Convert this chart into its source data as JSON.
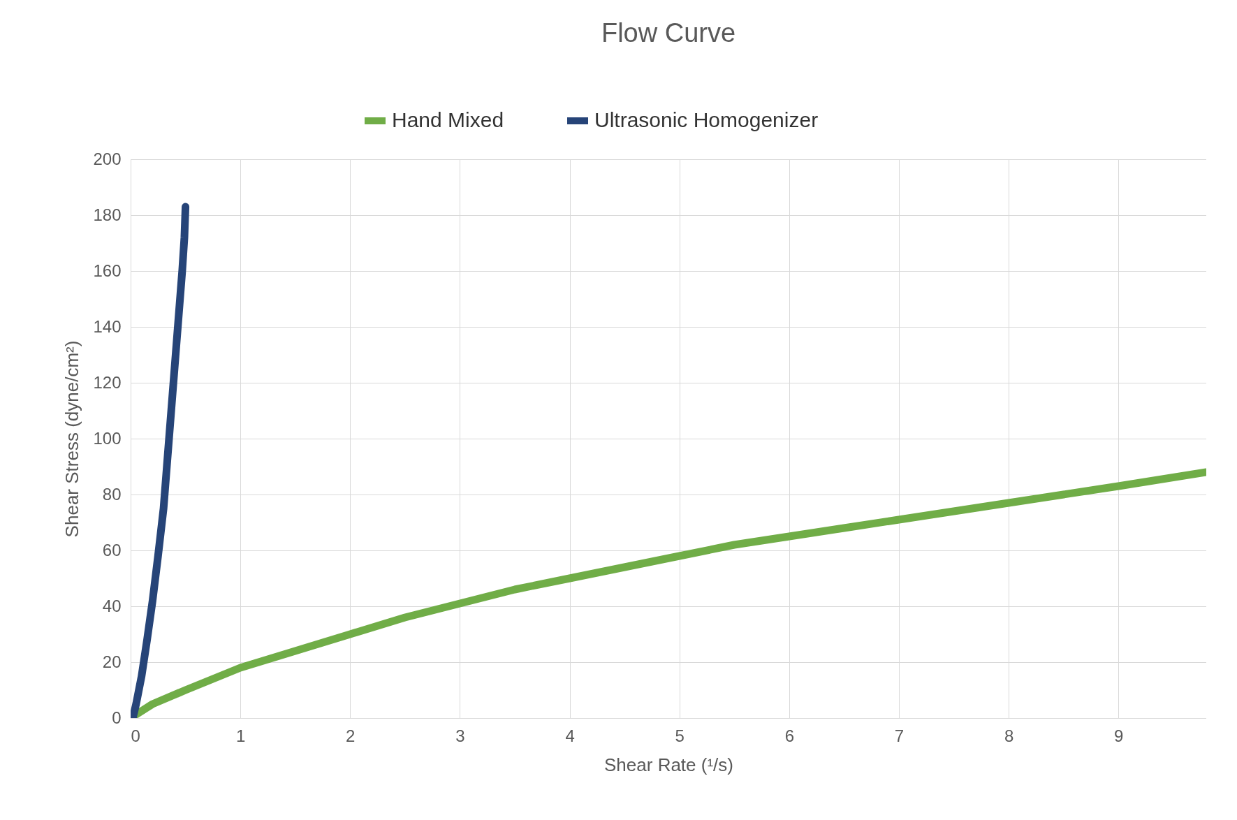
{
  "chart_data": {
    "type": "line",
    "title": "Flow Curve",
    "xlabel": "Shear Rate (¹/s)",
    "ylabel": "Shear Stress (dyne/cm²)",
    "series": [
      {
        "name": "Hand Mixed",
        "color": "#70ad47",
        "x": [
          0,
          0.2,
          0.5,
          1,
          1.5,
          2,
          2.5,
          3,
          3.5,
          4,
          4.5,
          5,
          5.5,
          6,
          6.5,
          7,
          7.5,
          8,
          8.5,
          9,
          9.8
        ],
        "values": [
          0,
          5,
          10,
          18,
          24,
          30,
          36,
          41,
          46,
          50,
          54,
          58,
          62,
          65,
          68,
          71,
          74,
          77,
          80,
          83,
          88
        ]
      },
      {
        "name": "Ultrasonic Homogenizer",
        "color": "#264478",
        "x": [
          0.02,
          0.05,
          0.1,
          0.15,
          0.2,
          0.25,
          0.3,
          0.33,
          0.37,
          0.4,
          0.44,
          0.47,
          0.49,
          0.5
        ],
        "values": [
          0,
          5,
          15,
          28,
          42,
          58,
          75,
          90,
          110,
          125,
          145,
          160,
          172,
          183
        ]
      }
    ],
    "xlim": [
      0,
      9.8
    ],
    "xticks": [
      0,
      1,
      2,
      3,
      4,
      5,
      6,
      7,
      8,
      9
    ],
    "ylim": [
      0,
      200
    ],
    "yticks": [
      0,
      20,
      40,
      60,
      80,
      100,
      120,
      140,
      160,
      180,
      200
    ],
    "grid": true,
    "legend": "top",
    "line_style": "solid"
  }
}
